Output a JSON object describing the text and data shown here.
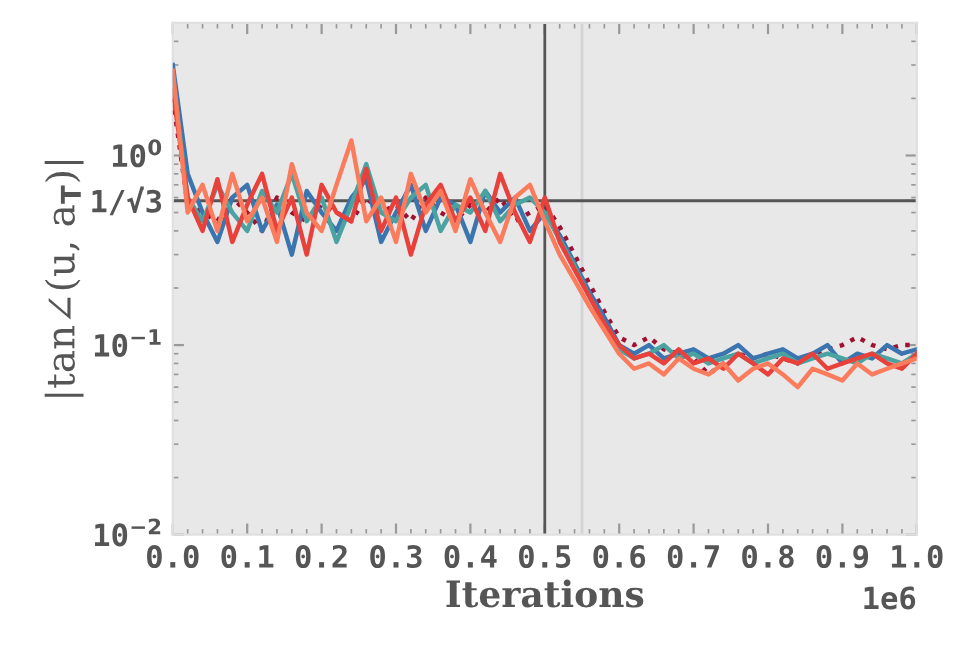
{
  "chart_data": {
    "type": "line",
    "xlabel": "Iterations",
    "ylabel": "|tan∠(u, a$_{T}$)|",
    "log": "y",
    "x": [
      0,
      0.02,
      0.04,
      0.06,
      0.08,
      0.1,
      0.12,
      0.14,
      0.16,
      0.18,
      0.2,
      0.22,
      0.24,
      0.26,
      0.28,
      0.3,
      0.32,
      0.34,
      0.36,
      0.38,
      0.4,
      0.42,
      0.44,
      0.46,
      0.48,
      0.5,
      0.52,
      0.54,
      0.56,
      0.58,
      0.6,
      0.62,
      0.64,
      0.66,
      0.68,
      0.7,
      0.72,
      0.74,
      0.76,
      0.78,
      0.8,
      0.82,
      0.84,
      0.86,
      0.88,
      0.9,
      0.92,
      0.94,
      0.96,
      0.98,
      1.0
    ],
    "series": [
      {
        "color": "#a01030",
        "line_style": "dotted",
        "values": [
          2.0,
          0.55,
          0.5,
          0.45,
          0.6,
          0.5,
          0.4,
          0.6,
          0.5,
          0.45,
          0.55,
          0.5,
          0.45,
          0.6,
          0.5,
          0.55,
          0.45,
          0.6,
          0.5,
          0.45,
          0.55,
          0.5,
          0.6,
          0.45,
          0.5,
          0.55,
          0.42,
          0.3,
          0.21,
          0.15,
          0.11,
          0.1,
          0.11,
          0.095,
          0.09,
          0.085,
          0.07,
          0.08,
          0.09,
          0.085,
          0.09,
          0.085,
          0.08,
          0.09,
          0.095,
          0.1,
          0.11,
          0.1,
          0.095,
          0.1,
          0.1
        ]
      },
      {
        "color": "#3b75af",
        "line_style": "solid",
        "values": [
          3.0,
          0.8,
          0.5,
          0.35,
          0.6,
          0.7,
          0.4,
          0.55,
          0.3,
          0.65,
          0.5,
          0.4,
          0.6,
          0.75,
          0.35,
          0.5,
          0.7,
          0.4,
          0.6,
          0.55,
          0.35,
          0.65,
          0.5,
          0.6,
          0.4,
          0.5,
          0.38,
          0.27,
          0.19,
          0.14,
          0.1,
          0.09,
          0.1,
          0.085,
          0.09,
          0.095,
          0.085,
          0.09,
          0.1,
          0.085,
          0.09,
          0.095,
          0.085,
          0.09,
          0.1,
          0.08,
          0.09,
          0.085,
          0.1,
          0.09,
          0.095
        ]
      },
      {
        "color": "#4aa3a0",
        "line_style": "solid",
        "values": [
          2.5,
          0.6,
          0.45,
          0.7,
          0.5,
          0.4,
          0.65,
          0.5,
          0.8,
          0.45,
          0.6,
          0.35,
          0.55,
          0.9,
          0.5,
          0.45,
          0.6,
          0.7,
          0.4,
          0.55,
          0.5,
          0.65,
          0.45,
          0.55,
          0.6,
          0.5,
          0.36,
          0.26,
          0.18,
          0.13,
          0.095,
          0.085,
          0.09,
          0.1,
          0.085,
          0.09,
          0.08,
          0.085,
          0.09,
          0.08,
          0.085,
          0.09,
          0.08,
          0.085,
          0.09,
          0.085,
          0.08,
          0.09,
          0.085,
          0.08,
          0.09
        ]
      },
      {
        "color": "#e8413b",
        "line_style": "solid",
        "values": [
          2.2,
          0.6,
          0.4,
          0.75,
          0.35,
          0.55,
          0.8,
          0.4,
          0.6,
          0.3,
          0.7,
          0.5,
          0.45,
          0.85,
          0.4,
          0.6,
          0.3,
          0.55,
          0.7,
          0.45,
          0.6,
          0.4,
          0.8,
          0.5,
          0.35,
          0.6,
          0.35,
          0.25,
          0.18,
          0.13,
          0.1,
          0.085,
          0.09,
          0.08,
          0.095,
          0.08,
          0.085,
          0.075,
          0.09,
          0.08,
          0.07,
          0.085,
          0.08,
          0.09,
          0.075,
          0.08,
          0.085,
          0.09,
          0.08,
          0.075,
          0.09
        ]
      },
      {
        "color": "#fb7c5c",
        "line_style": "solid",
        "values": [
          2.8,
          0.5,
          0.7,
          0.4,
          0.8,
          0.45,
          0.6,
          0.35,
          0.9,
          0.5,
          0.4,
          0.7,
          1.2,
          0.45,
          0.6,
          0.35,
          0.8,
          0.5,
          0.65,
          0.4,
          0.75,
          0.5,
          0.35,
          0.6,
          0.7,
          0.45,
          0.3,
          0.22,
          0.16,
          0.12,
          0.09,
          0.075,
          0.08,
          0.07,
          0.085,
          0.075,
          0.07,
          0.08,
          0.065,
          0.075,
          0.08,
          0.07,
          0.06,
          0.075,
          0.07,
          0.065,
          0.08,
          0.07,
          0.075,
          0.08,
          0.085
        ]
      }
    ],
    "xlim": [
      0,
      1.0
    ],
    "xticks": [
      {
        "value": 0,
        "label": "0.0"
      },
      0.1,
      0.2,
      0.3,
      0.4,
      0.5,
      0.6,
      0.7,
      0.8,
      0.9,
      {
        "value": 1.0,
        "label": "1.0"
      }
    ],
    "ylim": [
      0.01,
      5
    ],
    "yticks": [
      {
        "value": 0.01,
        "label": "10$^{−2}$"
      },
      {
        "value": 0.1,
        "label": "10$^{−1}$"
      },
      {
        "value": 0.577,
        "label": "1/√3"
      },
      {
        "value": 1,
        "label": "10$^{0}$"
      }
    ],
    "ref_lines": [
      {
        "axis": "x",
        "value": 0.5,
        "color": "#555555"
      },
      {
        "axis": "x",
        "value": 0.55,
        "color": "#d4d4d4"
      },
      {
        "axis": "y",
        "value": 0.577,
        "color": "#555555"
      }
    ],
    "annotations": [
      "1e6"
    ],
    "grid": false,
    "legend": false
  }
}
